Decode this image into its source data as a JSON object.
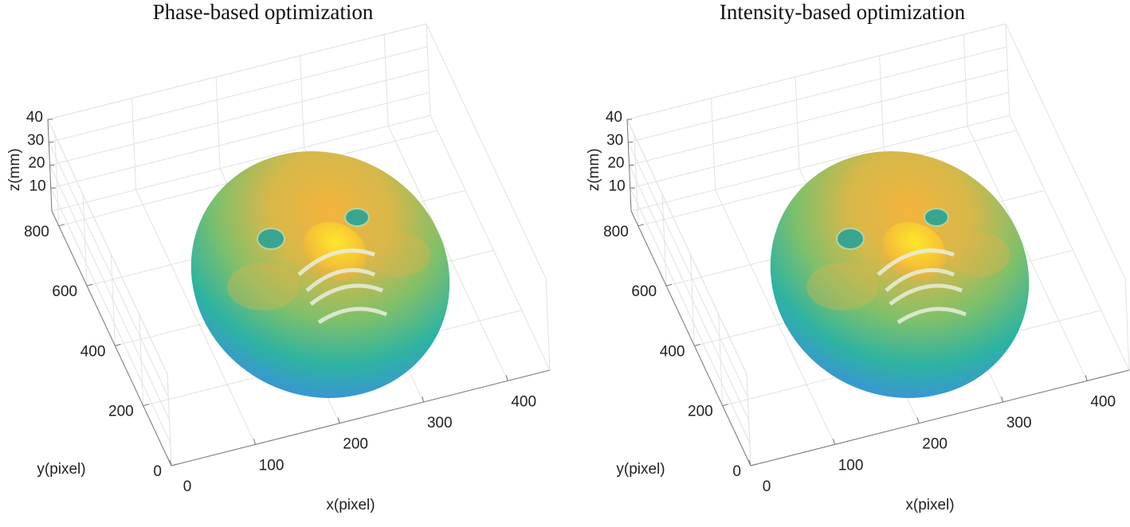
{
  "chart_data": [
    {
      "type": "surface3d",
      "title": "Phase-based optimization",
      "xlabel": "x(pixel)",
      "ylabel": "y(pixel)",
      "zlabel": "z(mm)",
      "xlim": [
        0,
        450
      ],
      "ylim": [
        0,
        850
      ],
      "zlim": [
        0,
        40
      ],
      "xticks": [
        0,
        100,
        200,
        300,
        400
      ],
      "yticks": [
        0,
        200,
        400,
        600,
        800
      ],
      "zticks": [
        10,
        20,
        30,
        40
      ],
      "grid": true
    },
    {
      "type": "surface3d",
      "title": "Intensity-based optimization",
      "xlabel": "x(pixel)",
      "ylabel": "y(pixel)",
      "zlabel": "z(mm)",
      "xlim": [
        0,
        450
      ],
      "ylim": [
        0,
        850
      ],
      "zlim": [
        0,
        40
      ],
      "xticks": [
        0,
        100,
        200,
        300,
        400
      ],
      "yticks": [
        0,
        200,
        400,
        600,
        800
      ],
      "zticks": [
        10,
        20,
        30,
        40
      ],
      "grid": true
    }
  ]
}
